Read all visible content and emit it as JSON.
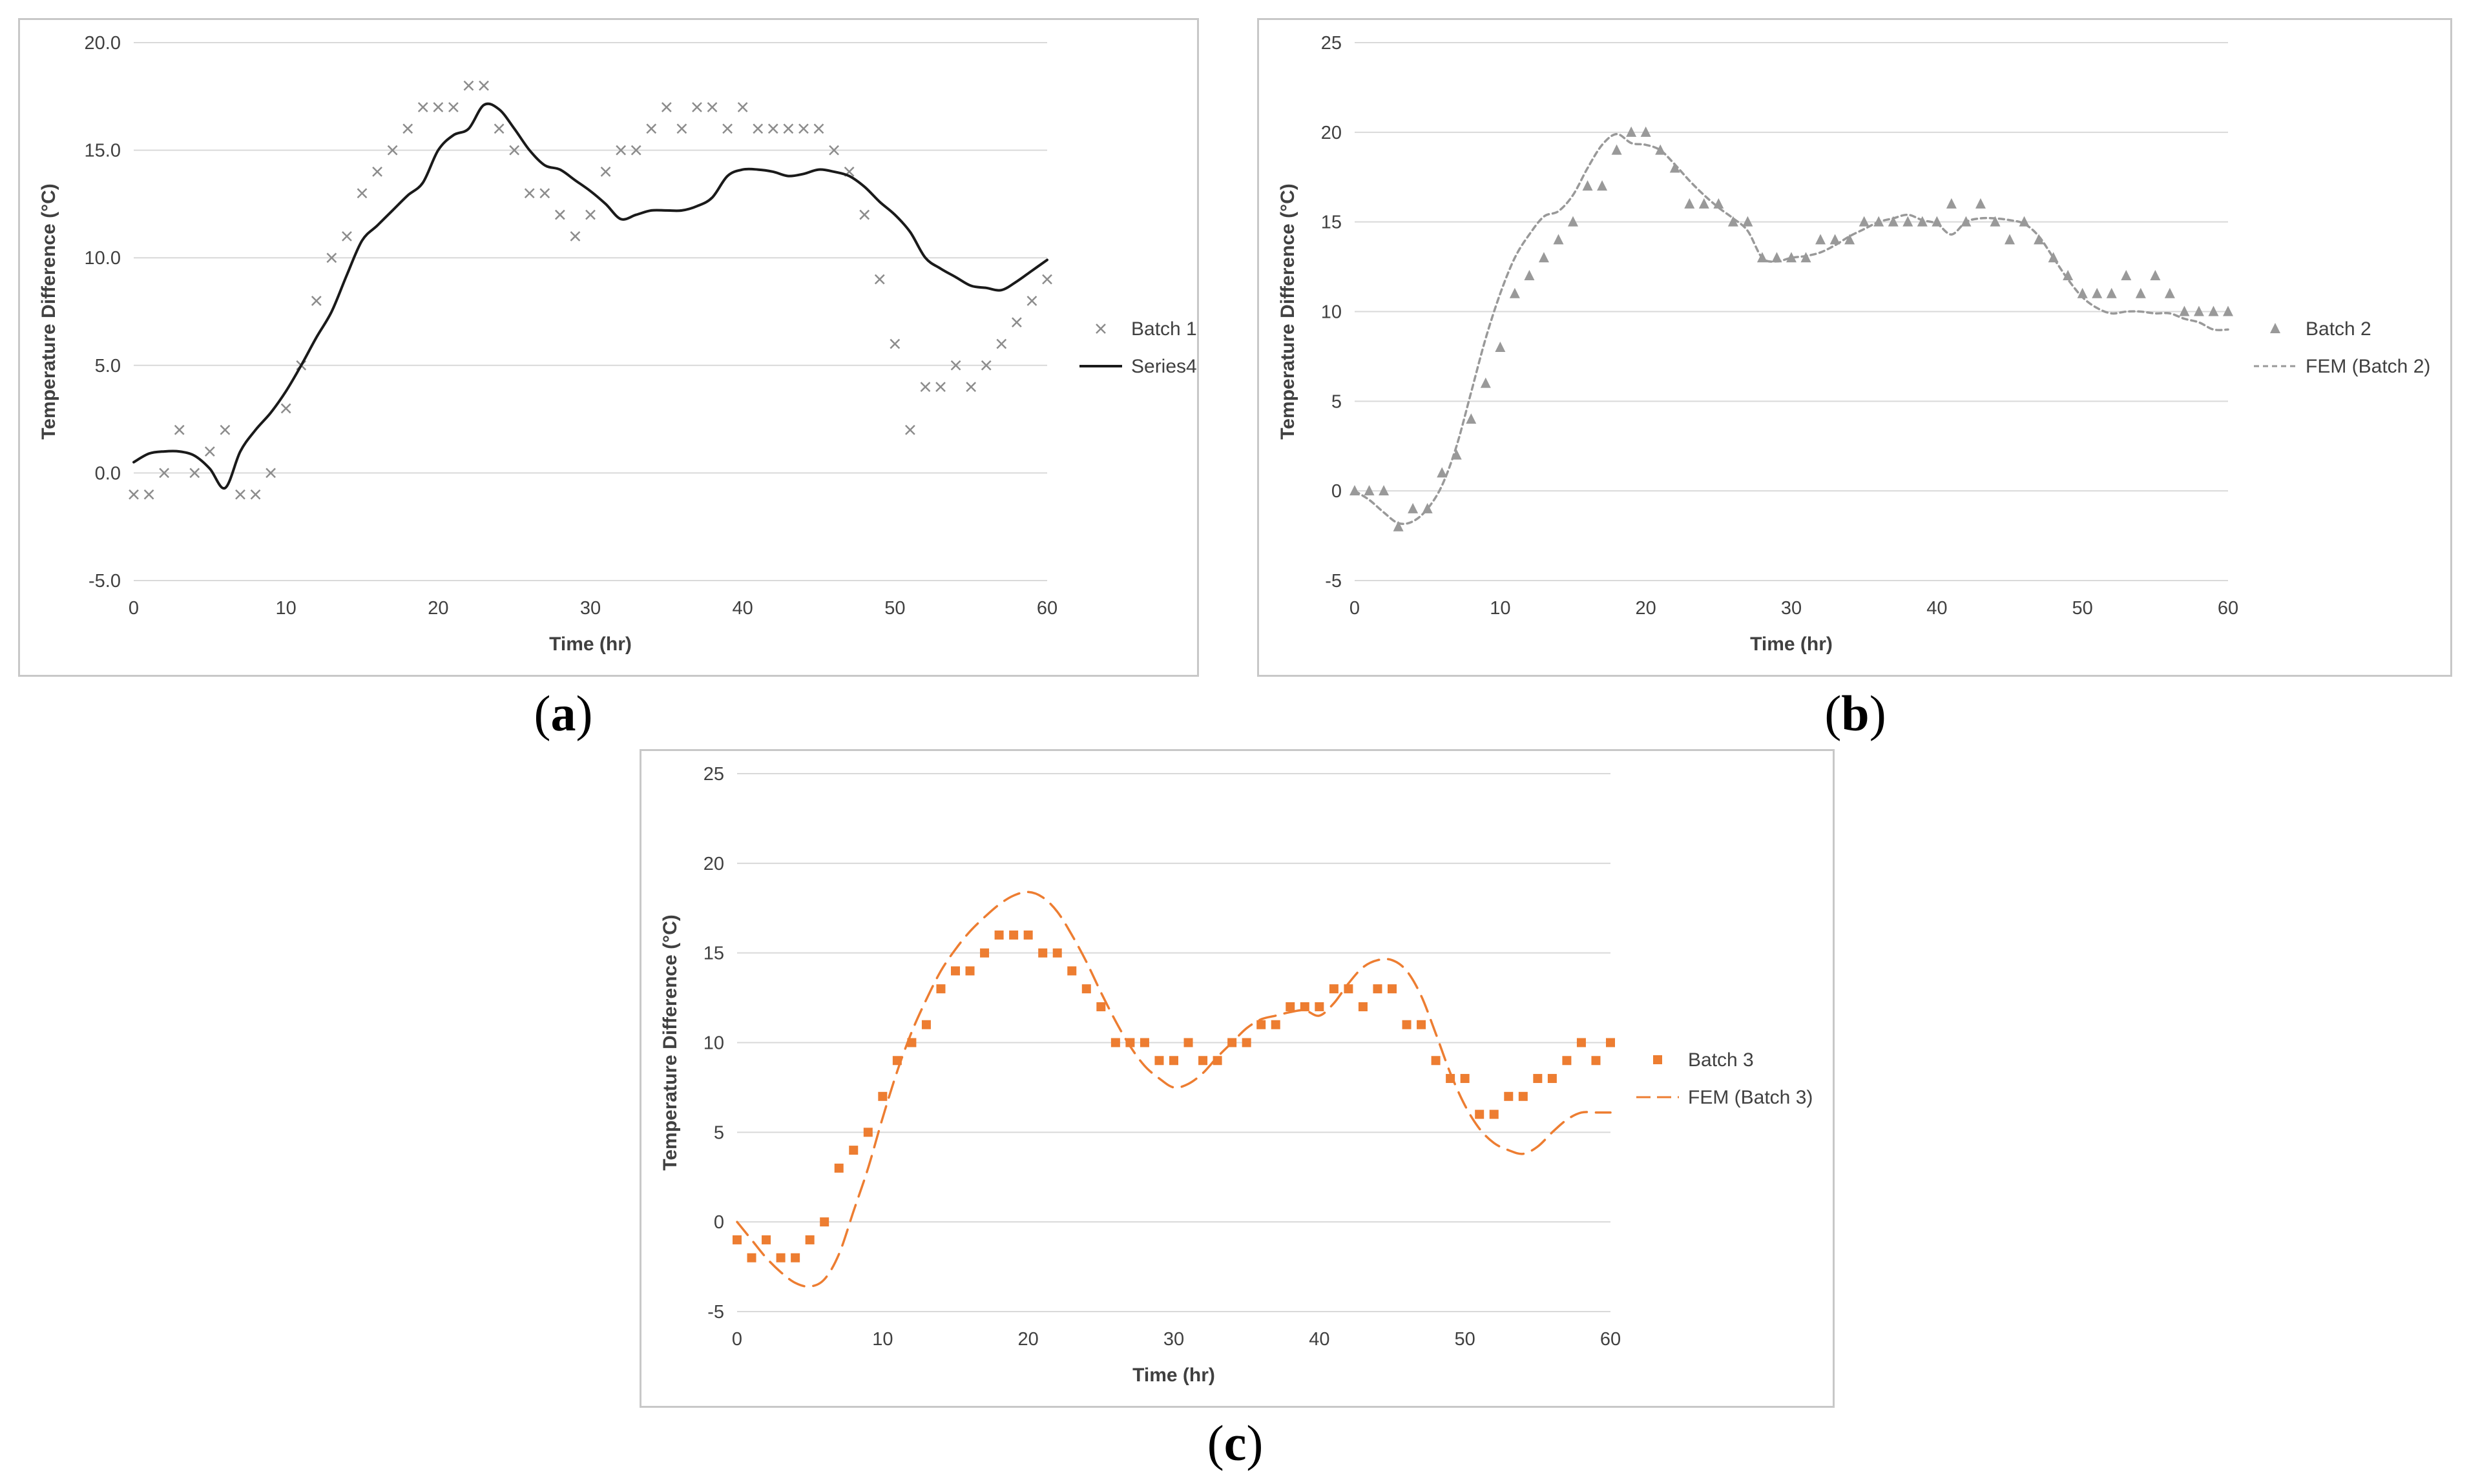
{
  "panels": [
    {
      "id": "a",
      "label": "a",
      "chart_data": {
        "type": "scatter",
        "title": "",
        "xlabel": "Time (hr)",
        "ylabel": "Temperature Difference (°C)",
        "xlim": [
          0,
          60
        ],
        "ylim": [
          -5,
          20
        ],
        "xticks": [
          0,
          10,
          20,
          30,
          40,
          50,
          60
        ],
        "yticks": [
          -5,
          0,
          5,
          10,
          15,
          20
        ],
        "ytick_labels": [
          "-5.0",
          "0.0",
          "5.0",
          "10.0",
          "15.0",
          "20.0"
        ],
        "grid": true,
        "legend_position": "right",
        "series": [
          {
            "name": "Batch 1",
            "kind": "marker",
            "marker": "x",
            "color": "#8c8c8c",
            "x": [
              0,
              1,
              2,
              3,
              4,
              5,
              6,
              7,
              8,
              9,
              10,
              11,
              12,
              13,
              14,
              15,
              16,
              17,
              18,
              19,
              20,
              21,
              22,
              23,
              24,
              25,
              26,
              27,
              28,
              29,
              30,
              31,
              32,
              33,
              34,
              35,
              36,
              37,
              38,
              39,
              40,
              41,
              42,
              43,
              44,
              45,
              46,
              47,
              48,
              49,
              50,
              51,
              52,
              53,
              54,
              55,
              56,
              57,
              58,
              59,
              60
            ],
            "y": [
              -1,
              -1,
              0,
              2,
              0,
              1,
              2,
              -1,
              -1,
              0,
              3,
              5,
              8,
              10,
              11,
              13,
              14,
              15,
              16,
              17,
              17,
              17,
              18,
              18,
              16,
              15,
              13,
              13,
              12,
              11,
              12,
              14,
              15,
              15,
              16,
              17,
              16,
              17,
              17,
              16,
              17,
              16,
              16,
              16,
              16,
              16,
              15,
              14,
              12,
              9,
              6,
              2,
              4,
              4,
              5,
              4,
              5,
              6,
              7,
              8,
              9
            ]
          },
          {
            "name": "Series4",
            "kind": "line",
            "dash": "solid",
            "color": "#1a1a1a",
            "x": [
              0,
              1,
              2,
              3,
              4,
              5,
              6,
              7,
              8,
              9,
              10,
              11,
              12,
              13,
              14,
              15,
              16,
              17,
              18,
              19,
              20,
              21,
              22,
              23,
              24,
              25,
              26,
              27,
              28,
              29,
              30,
              31,
              32,
              33,
              34,
              35,
              36,
              37,
              38,
              39,
              40,
              41,
              42,
              43,
              44,
              45,
              46,
              47,
              48,
              49,
              50,
              51,
              52,
              53,
              54,
              55,
              56,
              57,
              58,
              59,
              60
            ],
            "y": [
              0.5,
              0.9,
              1.0,
              1.0,
              0.8,
              0.2,
              -0.7,
              1.0,
              2.0,
              2.8,
              3.8,
              5.0,
              6.3,
              7.5,
              9.2,
              10.8,
              11.5,
              12.2,
              12.9,
              13.5,
              15.0,
              15.7,
              16.0,
              17.1,
              16.9,
              16.0,
              15.0,
              14.3,
              14.1,
              13.6,
              13.1,
              12.5,
              11.8,
              12.0,
              12.2,
              12.2,
              12.2,
              12.4,
              12.8,
              13.8,
              14.1,
              14.1,
              14.0,
              13.8,
              13.9,
              14.1,
              14.0,
              13.8,
              13.3,
              12.6,
              12.0,
              11.2,
              10.0,
              9.5,
              9.1,
              8.7,
              8.6,
              8.5,
              8.9,
              9.4,
              9.9
            ]
          }
        ]
      }
    },
    {
      "id": "b",
      "label": "b",
      "chart_data": {
        "type": "scatter",
        "title": "",
        "xlabel": "Time (hr)",
        "ylabel": "Temperature Difference (°C)",
        "xlim": [
          0,
          60
        ],
        "ylim": [
          -5,
          25
        ],
        "xticks": [
          0,
          10,
          20,
          30,
          40,
          50,
          60
        ],
        "yticks": [
          -5,
          0,
          5,
          10,
          15,
          20,
          25
        ],
        "ytick_labels": [
          "-5",
          "0",
          "5",
          "10",
          "15",
          "20",
          "25"
        ],
        "grid": true,
        "legend_position": "right",
        "series": [
          {
            "name": "Batch 2",
            "kind": "marker",
            "marker": "triangle",
            "color": "#999999",
            "x": [
              0,
              1,
              2,
              3,
              4,
              5,
              6,
              7,
              8,
              9,
              10,
              11,
              12,
              13,
              14,
              15,
              16,
              17,
              18,
              19,
              20,
              21,
              22,
              23,
              24,
              25,
              26,
              27,
              28,
              29,
              30,
              31,
              32,
              33,
              34,
              35,
              36,
              37,
              38,
              39,
              40,
              41,
              42,
              43,
              44,
              45,
              46,
              47,
              48,
              49,
              50,
              51,
              52,
              53,
              54,
              55,
              56,
              57,
              58,
              59,
              60
            ],
            "y": [
              0,
              0,
              0,
              -2,
              -1,
              -1,
              1,
              2,
              4,
              6,
              8,
              11,
              12,
              13,
              14,
              15,
              17,
              17,
              19,
              20,
              20,
              19,
              18,
              16,
              16,
              16,
              15,
              15,
              13,
              13,
              13,
              13,
              14,
              14,
              14,
              15,
              15,
              15,
              15,
              15,
              15,
              16,
              15,
              16,
              15,
              14,
              15,
              14,
              13,
              12,
              11,
              11,
              11,
              12,
              11,
              12,
              11,
              10,
              10,
              10,
              10
            ]
          },
          {
            "name": "FEM (Batch 2)",
            "kind": "line",
            "dash": "dotted",
            "color": "#999999",
            "x": [
              0,
              1,
              2,
              3,
              4,
              5,
              6,
              7,
              8,
              9,
              10,
              11,
              12,
              13,
              14,
              15,
              16,
              17,
              18,
              19,
              20,
              21,
              22,
              23,
              24,
              25,
              26,
              27,
              28,
              29,
              30,
              31,
              32,
              33,
              34,
              35,
              36,
              37,
              38,
              39,
              40,
              41,
              42,
              43,
              44,
              45,
              46,
              47,
              48,
              49,
              50,
              51,
              52,
              53,
              54,
              55,
              56,
              57,
              58,
              59,
              60
            ],
            "y": [
              0,
              -0.5,
              -1.2,
              -1.8,
              -1.7,
              -1.0,
              0.3,
              2.5,
              5.5,
              8.5,
              11.0,
              13.0,
              14.3,
              15.3,
              15.6,
              16.5,
              18.0,
              19.3,
              19.9,
              19.4,
              19.3,
              19.0,
              18.2,
              17.3,
              16.5,
              15.8,
              15.2,
              14.5,
              13.0,
              12.8,
              13.0,
              13.1,
              13.3,
              13.7,
              14.2,
              14.6,
              15.0,
              15.2,
              15.4,
              15.1,
              14.9,
              14.3,
              15.0,
              15.2,
              15.2,
              15.1,
              14.9,
              14.2,
              13.0,
              11.8,
              10.8,
              10.2,
              9.9,
              10.0,
              10.0,
              9.9,
              9.9,
              9.6,
              9.4,
              9.0,
              9.0
            ]
          }
        ]
      }
    },
    {
      "id": "c",
      "label": "c",
      "chart_data": {
        "type": "scatter",
        "title": "",
        "xlabel": "Time (hr)",
        "ylabel": "Temperature Difference (°C)",
        "xlim": [
          0,
          60
        ],
        "ylim": [
          -5,
          25
        ],
        "xticks": [
          0,
          10,
          20,
          30,
          40,
          50,
          60
        ],
        "yticks": [
          -5,
          0,
          5,
          10,
          15,
          20,
          25
        ],
        "ytick_labels": [
          "-5",
          "0",
          "5",
          "10",
          "15",
          "20",
          "25"
        ],
        "grid": true,
        "legend_position": "right",
        "series": [
          {
            "name": "Batch 3",
            "kind": "marker",
            "marker": "square",
            "color": "#ed7d31",
            "x": [
              0,
              1,
              2,
              3,
              4,
              5,
              6,
              7,
              8,
              9,
              10,
              11,
              12,
              13,
              14,
              15,
              16,
              17,
              18,
              19,
              20,
              21,
              22,
              23,
              24,
              25,
              26,
              27,
              28,
              29,
              30,
              31,
              32,
              33,
              34,
              35,
              36,
              37,
              38,
              39,
              40,
              41,
              42,
              43,
              44,
              45,
              46,
              47,
              48,
              49,
              50,
              51,
              52,
              53,
              54,
              55,
              56,
              57,
              58,
              59,
              60
            ],
            "y": [
              -1,
              -2,
              -1,
              -2,
              -2,
              -1,
              0,
              3,
              4,
              5,
              7,
              9,
              10,
              11,
              13,
              14,
              14,
              15,
              16,
              16,
              16,
              15,
              15,
              14,
              13,
              12,
              10,
              10,
              10,
              9,
              9,
              10,
              9,
              9,
              10,
              10,
              11,
              11,
              12,
              12,
              12,
              13,
              13,
              12,
              13,
              13,
              11,
              11,
              9,
              8,
              8,
              6,
              6,
              7,
              7,
              8,
              8,
              9,
              10,
              9,
              10
            ]
          },
          {
            "name": "FEM (Batch 3)",
            "kind": "line",
            "dash": "dashed",
            "color": "#ed7d31",
            "x": [
              0,
              1,
              2,
              3,
              4,
              5,
              6,
              7,
              8,
              9,
              10,
              11,
              12,
              13,
              14,
              15,
              16,
              17,
              18,
              19,
              20,
              21,
              22,
              23,
              24,
              25,
              26,
              27,
              28,
              29,
              30,
              31,
              32,
              33,
              34,
              35,
              36,
              37,
              38,
              39,
              40,
              41,
              42,
              43,
              44,
              45,
              46,
              47,
              48,
              49,
              50,
              51,
              52,
              53,
              54,
              55,
              56,
              57,
              58,
              59,
              60
            ],
            "y": [
              0,
              -1.0,
              -2.0,
              -2.8,
              -3.4,
              -3.6,
              -3.2,
              -1.8,
              0.6,
              3.0,
              5.8,
              8.4,
              10.6,
              12.4,
              14.0,
              15.2,
              16.2,
              17.0,
              17.7,
              18.2,
              18.4,
              18.1,
              17.3,
              16.0,
              14.5,
              12.8,
              11.2,
              9.8,
              8.7,
              8.0,
              7.5,
              7.7,
              8.3,
              9.2,
              10.0,
              10.8,
              11.3,
              11.5,
              11.7,
              11.8,
              11.5,
              12.2,
              13.3,
              14.2,
              14.6,
              14.6,
              14.0,
              12.6,
              10.5,
              8.3,
              6.5,
              5.2,
              4.4,
              4.0,
              3.8,
              4.2,
              5.0,
              5.7,
              6.1,
              6.1,
              6.1
            ]
          }
        ]
      }
    }
  ]
}
